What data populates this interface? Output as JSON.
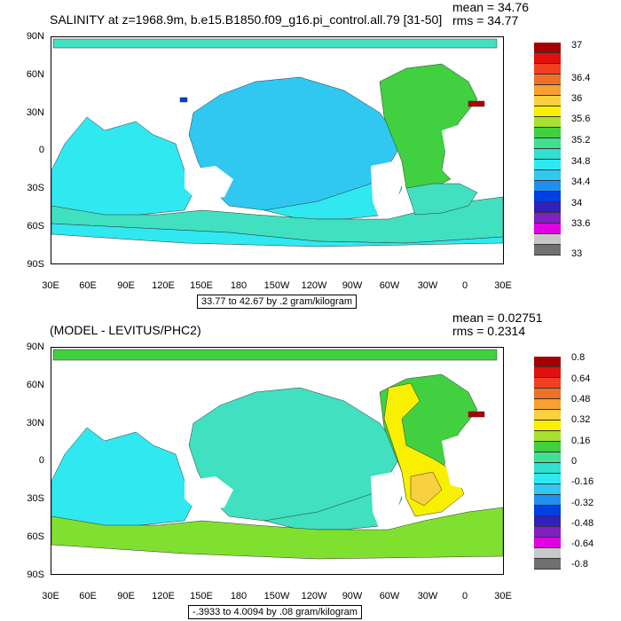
{
  "panels": [
    {
      "title": "SALINITY at z=1968.9m, b.e15.B1850.f09_g16.pi_control.all.79 [31-50]",
      "mean_label": "mean = 34.76",
      "rms_label": "rms = 34.77",
      "range_label": "33.77 to 42.67 by .2 gram/kilogram",
      "y_ticks": [
        "90N",
        "60N",
        "30N",
        "0",
        "30S",
        "60S",
        "90S"
      ],
      "x_ticks": [
        "30E",
        "60E",
        "90E",
        "120E",
        "150E",
        "180",
        "150W",
        "120W",
        "90W",
        "60W",
        "30W",
        "0",
        "30E"
      ],
      "colorbar_labels": [
        "37",
        "36.4",
        "36",
        "35.6",
        "35.2",
        "34.8",
        "34.4",
        "34",
        "33.6",
        "33"
      ],
      "colorbar_colors": [
        "#a50000",
        "#e01010",
        "#f04020",
        "#f07028",
        "#f8a030",
        "#f8d040",
        "#f8f000",
        "#a8e030",
        "#40d040",
        "#40e090",
        "#30e0d0",
        "#30e8f0",
        "#30c8f0",
        "#2090f0",
        "#0040e0",
        "#3020c0",
        "#8020c0",
        "#e000e0",
        "#c8c8c8",
        "#707070"
      ]
    },
    {
      "title": "(MODEL - LEVITUS/PHC2)",
      "mean_label": "mean = 0.02751",
      "rms_label": "rms = 0.2314",
      "range_label": "-.3933 to 4.0094 by .08 gram/kilogram",
      "y_ticks": [
        "90N",
        "60N",
        "30N",
        "0",
        "30S",
        "60S",
        "90S"
      ],
      "x_ticks": [
        "30E",
        "60E",
        "90E",
        "120E",
        "150E",
        "180",
        "150W",
        "120W",
        "90W",
        "60W",
        "30W",
        "0",
        "30E"
      ],
      "colorbar_labels": [
        "0.8",
        "0.64",
        "0.48",
        "0.32",
        "0.16",
        "0",
        "-0.16",
        "-0.32",
        "-0.48",
        "-0.64",
        "-0.8"
      ],
      "colorbar_colors": [
        "#a50000",
        "#e01010",
        "#f04020",
        "#f07028",
        "#f8a030",
        "#f8d040",
        "#f8f000",
        "#a8e030",
        "#40d040",
        "#40e090",
        "#30e0d0",
        "#30e8f0",
        "#30c8f0",
        "#2090f0",
        "#0040e0",
        "#3020c0",
        "#8020c0",
        "#e000e0",
        "#c8c8c8",
        "#707070"
      ]
    }
  ],
  "colors": {
    "cyan": "#30e8f0",
    "light_blue": "#30c8f0",
    "turquoise": "#40e0c0",
    "green": "#40d040",
    "lime": "#80e030",
    "yellow": "#f8f000",
    "gold": "#f8d040",
    "dark_red": "#b00000",
    "blue": "#0040e0"
  }
}
